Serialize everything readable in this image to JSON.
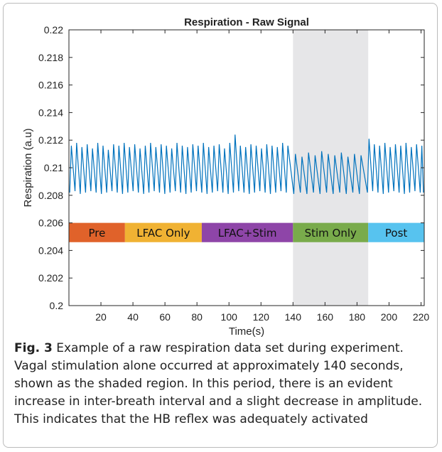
{
  "chart_data": {
    "type": "line",
    "title": "Respiration - Raw Signal",
    "xlabel": "Time(s)",
    "ylabel": "Respiration (a.u)",
    "color": "#0072bd",
    "x": [
      0.5,
      1.5,
      3.8,
      4.8,
      7.1,
      8.1,
      10.4,
      11.4,
      13.7,
      14.7,
      17.0,
      18.0,
      20.3,
      21.3,
      23.6,
      24.6,
      26.9,
      27.9,
      30.2,
      31.2,
      33.5,
      34.5,
      36.8,
      37.8,
      40.1,
      41.1,
      43.4,
      44.4,
      46.7,
      47.7,
      50.0,
      51.0,
      53.3,
      54.3,
      56.6,
      57.6,
      59.9,
      60.9,
      63.2,
      64.2,
      66.5,
      67.5,
      69.8,
      70.8,
      73.1,
      74.1,
      76.4,
      77.4,
      79.7,
      80.7,
      83.0,
      84.0,
      86.3,
      87.3,
      89.6,
      90.6,
      92.9,
      93.9,
      96.2,
      97.2,
      99.5,
      100.5,
      102.8,
      103.8,
      106.1,
      107.1,
      109.4,
      110.4,
      112.7,
      113.7,
      116.0,
      117.0,
      119.3,
      120.3,
      122.6,
      123.6,
      125.9,
      126.9,
      129.2,
      130.2,
      132.5,
      133.5,
      135.8,
      136.8,
      140.5,
      141.5,
      144.6,
      145.6,
      148.7,
      149.7,
      152.8,
      153.8,
      156.9,
      157.9,
      161.0,
      162.0,
      165.1,
      166.1,
      169.2,
      170.2,
      173.3,
      174.3,
      177.4,
      178.4,
      181.5,
      182.5,
      186.5,
      187.5,
      189.8,
      190.8,
      193.1,
      194.1,
      196.4,
      197.4,
      199.7,
      200.7,
      203.0,
      204.0,
      206.3,
      207.3,
      209.6,
      210.6,
      212.9,
      213.9,
      216.2,
      217.2,
      219.5,
      220.5,
      221.5
    ],
    "values": [
      0.2082,
      0.2116,
      0.2083,
      0.2118,
      0.2081,
      0.2115,
      0.2082,
      0.2117,
      0.2083,
      0.2114,
      0.2082,
      0.2118,
      0.2081,
      0.2116,
      0.2082,
      0.2113,
      0.2083,
      0.2117,
      0.2082,
      0.2116,
      0.2081,
      0.2118,
      0.2082,
      0.2115,
      0.2083,
      0.2117,
      0.2082,
      0.2114,
      0.2081,
      0.2116,
      0.2082,
      0.2118,
      0.2083,
      0.2115,
      0.2082,
      0.2117,
      0.2081,
      0.2116,
      0.2082,
      0.2114,
      0.2083,
      0.2118,
      0.2082,
      0.2116,
      0.2081,
      0.2115,
      0.2082,
      0.2117,
      0.2083,
      0.2116,
      0.2082,
      0.2118,
      0.2081,
      0.2115,
      0.2082,
      0.2116,
      0.2083,
      0.2117,
      0.2082,
      0.2114,
      0.2081,
      0.2118,
      0.2082,
      0.2124,
      0.2083,
      0.2116,
      0.2082,
      0.2115,
      0.2081,
      0.2117,
      0.2082,
      0.2116,
      0.2083,
      0.2114,
      0.2082,
      0.2117,
      0.2081,
      0.2116,
      0.2082,
      0.2115,
      0.2083,
      0.2118,
      0.2082,
      0.2116,
      0.2081,
      0.211,
      0.2082,
      0.2108,
      0.2081,
      0.2111,
      0.2082,
      0.2109,
      0.2081,
      0.2112,
      0.2082,
      0.211,
      0.2081,
      0.2109,
      0.2082,
      0.2111,
      0.2081,
      0.2108,
      0.2082,
      0.211,
      0.2081,
      0.2109,
      0.2082,
      0.2121,
      0.2083,
      0.2117,
      0.2082,
      0.2116,
      0.2081,
      0.2118,
      0.2082,
      0.2115,
      0.2083,
      0.2117,
      0.2082,
      0.2116,
      0.2081,
      0.2118,
      0.2082,
      0.2115,
      0.2083,
      0.2117,
      0.2082,
      0.2116,
      0.2082
    ],
    "xlim": [
      0,
      222
    ],
    "ylim": [
      0.2,
      0.22
    ],
    "xticks": [
      20,
      40,
      60,
      80,
      100,
      120,
      140,
      160,
      180,
      200,
      220
    ],
    "yticks": [
      0.2,
      0.202,
      0.204,
      0.206,
      0.208,
      0.21,
      0.212,
      0.214,
      0.216,
      0.218,
      0.22
    ],
    "shaded": {
      "start": 140,
      "end": 187,
      "color": "#e6e6e8"
    },
    "phase_band": [
      0.2046,
      0.206
    ],
    "phases": [
      {
        "label": "Pre",
        "start": 0,
        "end": 35,
        "color": "#e0622a"
      },
      {
        "label": "LFAC Only",
        "start": 35,
        "end": 83,
        "color": "#f0b233"
      },
      {
        "label": "LFAC+Stim",
        "start": 83,
        "end": 140,
        "color": "#8e45a8"
      },
      {
        "label": "Stim Only",
        "start": 140,
        "end": 187,
        "color": "#79ab4b"
      },
      {
        "label": "Post",
        "start": 187,
        "end": 222,
        "color": "#57c3ef"
      }
    ]
  },
  "caption": {
    "label": "Fig. 3",
    "text": "Example of a raw respiration data set during experiment. Vagal stimulation alone occurred at approximately 140 seconds, shown as the shaded region. In this period, there is an evident increase in inter-breath interval and a slight decrease in amplitude. This indicates that the HB reflex was adequately activated"
  }
}
